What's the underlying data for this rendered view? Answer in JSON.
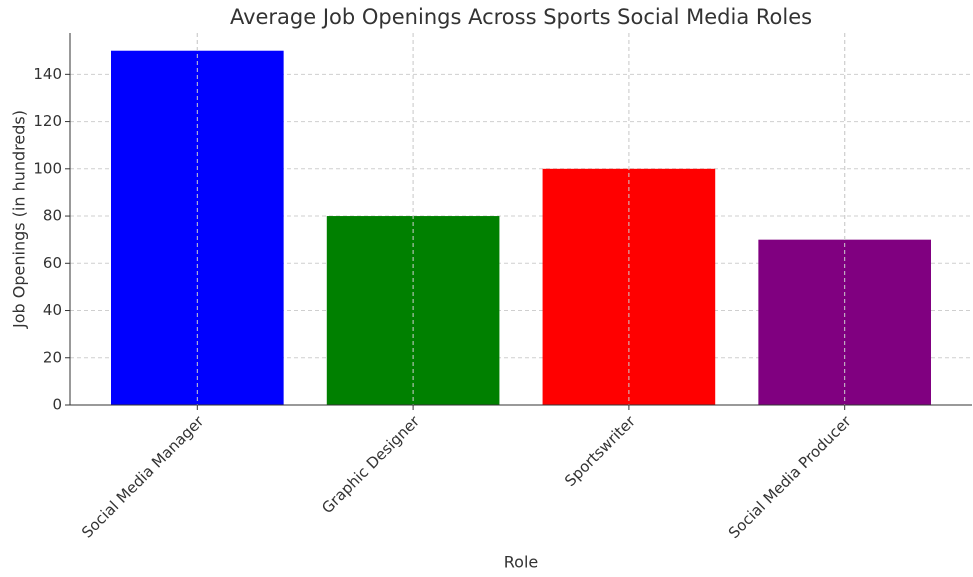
{
  "chart_data": {
    "type": "bar",
    "title": "Average Job Openings Across Sports Social Media Roles",
    "x_label": "Role",
    "y_label": "Job Openings (in hundreds)",
    "categories": [
      "Social Media Manager",
      "Graphic Designer",
      "Sportswriter",
      "Social Media Producer"
    ],
    "values": [
      150,
      80,
      100,
      70
    ],
    "colors": [
      "#0000ff",
      "#008000",
      "#ff0000",
      "#800080"
    ],
    "ylim": [
      0,
      157.5
    ],
    "yticks": [
      0,
      20,
      40,
      60,
      80,
      100,
      120,
      140
    ],
    "grid": true
  }
}
